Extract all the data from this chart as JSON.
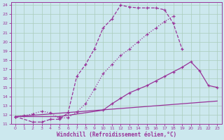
{
  "bg_color": "#cce8ee",
  "grid_color": "#aaccbb",
  "line_color": "#993399",
  "xlabel": "Windchill (Refroidissement éolien,°C)",
  "xlim": [
    -0.5,
    23.5
  ],
  "ylim": [
    11,
    24.3
  ],
  "xticks": [
    0,
    1,
    2,
    3,
    4,
    5,
    6,
    7,
    8,
    9,
    10,
    11,
    12,
    13,
    14,
    15,
    16,
    17,
    18,
    19,
    20,
    21,
    22,
    23
  ],
  "yticks": [
    11,
    12,
    13,
    14,
    15,
    16,
    17,
    18,
    19,
    20,
    21,
    22,
    23,
    24
  ],
  "line1": {
    "x": [
      0,
      1,
      2,
      3,
      4,
      5,
      6,
      7,
      8,
      9,
      10,
      11,
      12,
      13,
      14,
      15,
      16,
      17,
      18
    ],
    "y": [
      11.8,
      11.9,
      12.1,
      12.4,
      12.2,
      11.6,
      11.7,
      12.3,
      13.2,
      14.8,
      16.5,
      17.5,
      18.5,
      19.2,
      20.0,
      20.8,
      21.5,
      22.2,
      22.8
    ]
  },
  "line2": {
    "x": [
      0,
      2,
      3,
      4,
      5,
      6,
      7,
      8,
      9,
      10,
      11,
      12,
      13,
      14,
      15,
      16,
      17,
      18,
      19
    ],
    "y": [
      11.8,
      11.2,
      11.2,
      11.5,
      11.5,
      12.2,
      16.2,
      17.5,
      19.2,
      21.5,
      22.5,
      24.0,
      23.8,
      23.7,
      23.7,
      23.7,
      23.5,
      22.0,
      19.2
    ]
  },
  "line3": {
    "x": [
      0,
      23
    ],
    "y": [
      11.8,
      13.5
    ]
  },
  "line4": {
    "x": [
      0,
      5,
      10,
      11,
      12,
      13,
      14,
      15,
      16,
      17,
      18,
      19,
      20,
      21,
      22,
      23
    ],
    "y": [
      11.8,
      11.8,
      12.5,
      13.2,
      13.8,
      14.4,
      14.8,
      15.2,
      15.7,
      16.2,
      16.7,
      17.2,
      17.8,
      16.8,
      15.2,
      15.0
    ]
  }
}
